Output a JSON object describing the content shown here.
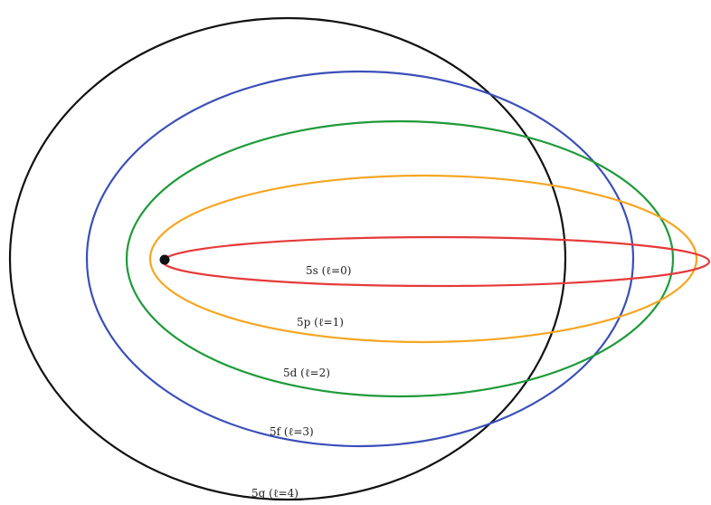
{
  "diagram": {
    "colors": {
      "background": "#ffffff",
      "nucleus": "#111111"
    },
    "orbits": [
      {
        "id": "5s",
        "label": "5s (ℓ=0)",
        "color": "#e53a3a"
      },
      {
        "id": "5p",
        "label": "5p (ℓ=1)",
        "color": "#f5a623"
      },
      {
        "id": "5d",
        "label": "5d (ℓ=2)",
        "color": "#1f9a3a"
      },
      {
        "id": "5f",
        "label": "5f (ℓ=3)",
        "color": "#3b4fb8"
      },
      {
        "id": "5g",
        "label": "5g (ℓ=4)",
        "color": "#111111"
      }
    ]
  }
}
